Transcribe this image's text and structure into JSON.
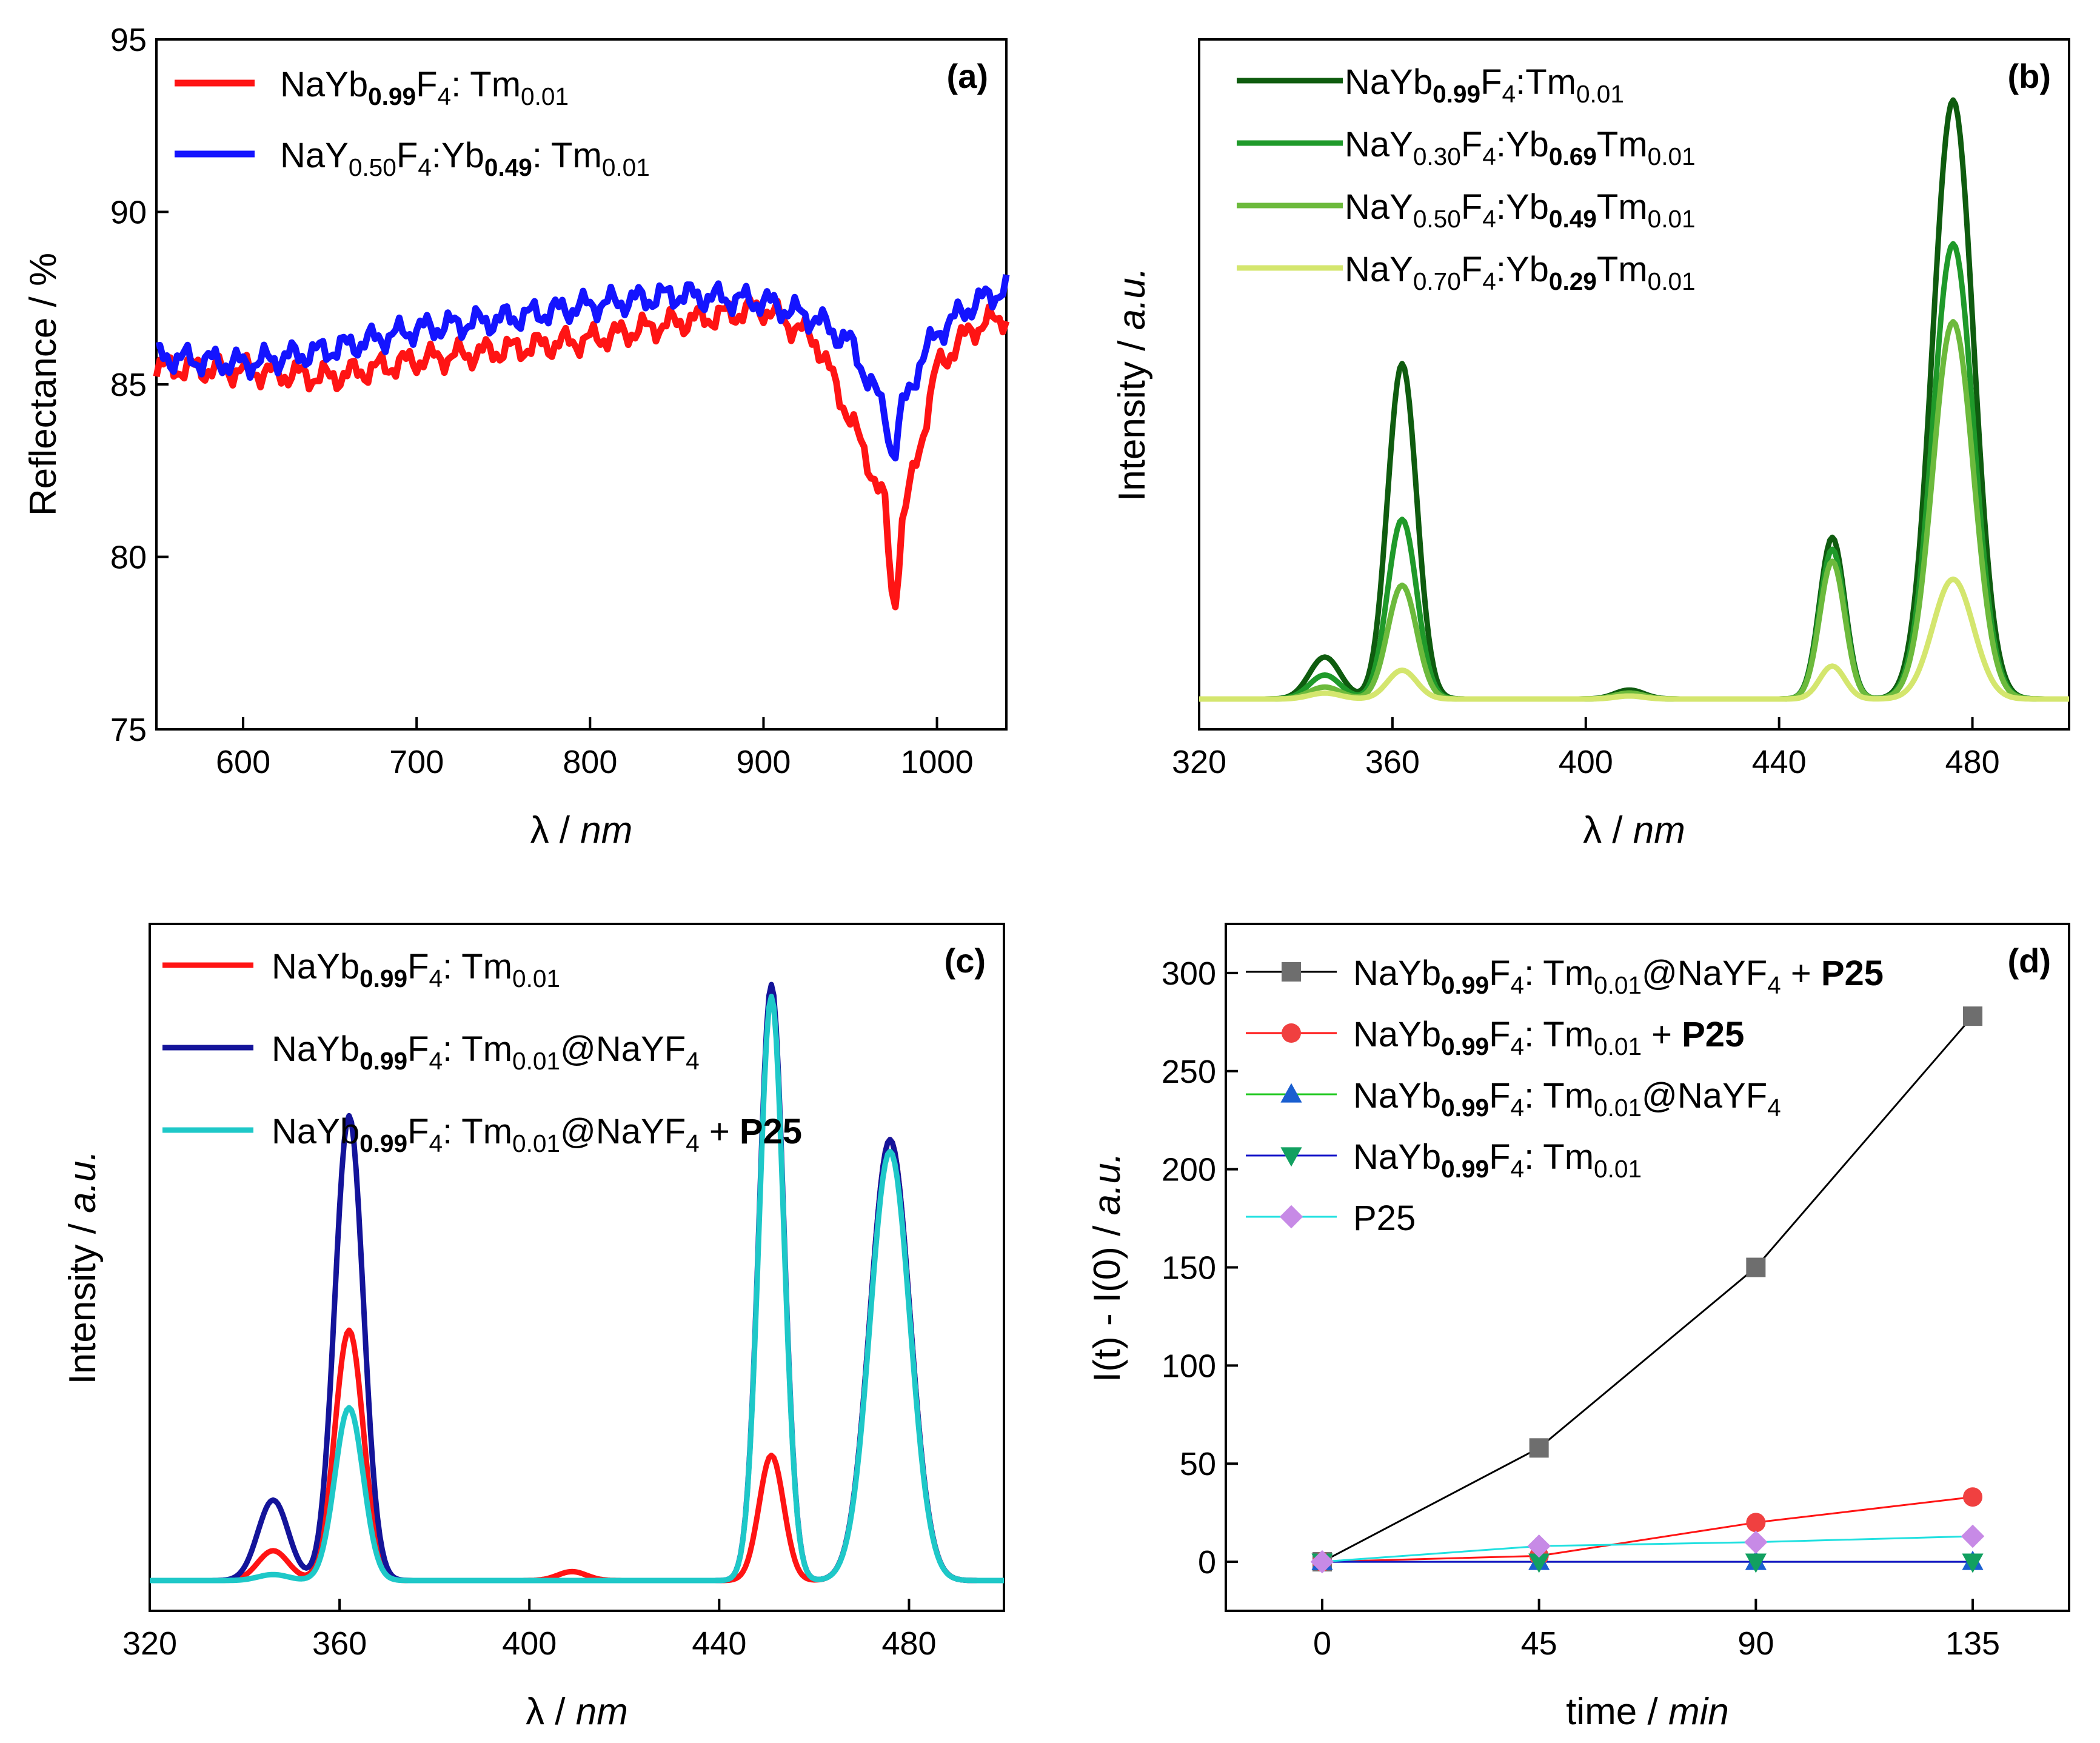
{
  "chart_data": [
    {
      "panel": "(a)",
      "type": "line",
      "xlabel_sym": "λ",
      "xlabel_sep": " / ",
      "xlabel_unit": "nm",
      "ylabel": "Reflectance / %",
      "xlim": [
        550,
        1040
      ],
      "ylim": [
        75,
        95
      ],
      "xticks": [
        600,
        700,
        800,
        900,
        1000
      ],
      "yticks": [
        75,
        80,
        85,
        90,
        95
      ],
      "series": [
        {
          "name": "NaYb0.99F4: Tm0.01",
          "label": [
            [
              "NaYb",
              ""
            ],
            [
              "0.99",
              "subb"
            ],
            [
              "F",
              ""
            ],
            [
              "4",
              "sub"
            ],
            [
              ": Tm",
              ""
            ],
            [
              "0.01",
              "sub"
            ]
          ],
          "color": "#ff1414",
          "width": 11,
          "x": [
            550,
            600,
            650,
            700,
            750,
            800,
            850,
            900,
            930,
            950,
            960,
            970,
            975,
            980,
            990,
            1000,
            1020,
            1040
          ],
          "y": [
            85.5,
            85.4,
            85.2,
            85.7,
            86.0,
            86.3,
            86.8,
            87.2,
            86.3,
            84.0,
            82.8,
            81.5,
            78.3,
            81.0,
            83.2,
            85.5,
            86.6,
            87.0
          ]
        },
        {
          "name": "NaY0.50F4:Yb0.49: Tm0.01",
          "label": [
            [
              "NaY",
              ""
            ],
            [
              "0.50",
              "sub"
            ],
            [
              "F",
              ""
            ],
            [
              "4",
              "sub"
            ],
            [
              ":Yb",
              ""
            ],
            [
              "0.49",
              "subb"
            ],
            [
              ": Tm",
              ""
            ],
            [
              "0.01",
              "sub"
            ]
          ],
          "color": "#1414ff",
          "width": 11,
          "x": [
            550,
            600,
            650,
            700,
            750,
            800,
            850,
            900,
            930,
            950,
            960,
            970,
            975,
            980,
            990,
            1000,
            1020,
            1040
          ],
          "y": [
            85.8,
            85.6,
            86.0,
            86.6,
            86.9,
            87.3,
            87.6,
            87.4,
            86.9,
            86.2,
            85.2,
            84.2,
            82.8,
            84.3,
            85.6,
            86.5,
            87.3,
            87.8
          ]
        }
      ]
    },
    {
      "panel": "(b)",
      "type": "line",
      "xlabel_sym": "λ",
      "xlabel_sep": " / ",
      "xlabel_unit": "nm",
      "ylabel_main": "Intensity / ",
      "ylabel_unit": "a.u.",
      "xlim": [
        320,
        500
      ],
      "ylim": [
        0,
        1.1
      ],
      "xticks": [
        320,
        360,
        400,
        440,
        480
      ],
      "series": [
        {
          "name": "NaYb0.99F4:Tm0.01",
          "label": [
            [
              "NaYb",
              ""
            ],
            [
              "0.99",
              "subb"
            ],
            [
              "F",
              ""
            ],
            [
              "4",
              "sub"
            ],
            [
              ":Tm",
              ""
            ],
            [
              "0.01",
              "sub"
            ]
          ],
          "color": "#0f5c0f",
          "width": 9,
          "peaks": [
            0.07,
            0.56,
            0.015,
            0.27,
            1.0
          ]
        },
        {
          "name": "NaY0.30F4:Yb0.69Tm0.01",
          "label": [
            [
              "NaY",
              ""
            ],
            [
              "0.30",
              "sub"
            ],
            [
              "F",
              ""
            ],
            [
              "4",
              "sub"
            ],
            [
              ":Yb",
              ""
            ],
            [
              "0.69",
              "subb"
            ],
            [
              "Tm",
              ""
            ],
            [
              "0.01",
              "sub"
            ]
          ],
          "color": "#1f9a2a",
          "width": 9,
          "peaks": [
            0.04,
            0.3,
            0.01,
            0.25,
            0.76
          ]
        },
        {
          "name": "NaY0.50F4:Yb0.49Tm0.01",
          "label": [
            [
              "NaY",
              ""
            ],
            [
              "0.50",
              "sub"
            ],
            [
              "F",
              ""
            ],
            [
              "4",
              "sub"
            ],
            [
              ":Yb",
              ""
            ],
            [
              "0.49",
              "subb"
            ],
            [
              "Tm",
              ""
            ],
            [
              "0.01",
              "sub"
            ]
          ],
          "color": "#6cba3c",
          "width": 9,
          "peaks": [
            0.02,
            0.19,
            0.01,
            0.23,
            0.63
          ]
        },
        {
          "name": "NaY0.70F4:Yb0.29Tm0.01",
          "label": [
            [
              "NaY",
              ""
            ],
            [
              "0.70",
              "sub"
            ],
            [
              "F",
              ""
            ],
            [
              "4",
              "sub"
            ],
            [
              ":Yb",
              ""
            ],
            [
              "0.29",
              "subb"
            ],
            [
              "Tm",
              ""
            ],
            [
              "0.01",
              "sub"
            ]
          ],
          "color": "#d4e66e",
          "width": 9,
          "peaks": [
            0.01,
            0.048,
            0.005,
            0.055,
            0.2
          ]
        }
      ]
    },
    {
      "panel": "(c)",
      "type": "line",
      "xlabel_sym": "λ",
      "xlabel_sep": " / ",
      "xlabel_unit": "nm",
      "ylabel_main": "Intensity / ",
      "ylabel_unit": "a.u.",
      "xlim": [
        320,
        500
      ],
      "ylim": [
        0,
        1.1
      ],
      "xticks": [
        320,
        360,
        400,
        440,
        480
      ],
      "series": [
        {
          "name": "NaYb0.99F4: Tm0.01",
          "label": [
            [
              "NaYb",
              ""
            ],
            [
              "0.99",
              "subb"
            ],
            [
              "F",
              ""
            ],
            [
              "4",
              "sub"
            ],
            [
              ": Tm",
              ""
            ],
            [
              "0.01",
              "sub"
            ]
          ],
          "color": "#ff1414",
          "width": 9,
          "peaks": [
            0.05,
            0.42,
            0.015,
            0.21,
            0.74
          ]
        },
        {
          "name": "NaYb0.99F4: Tm0.01@NaYF4",
          "label": [
            [
              "NaYb",
              ""
            ],
            [
              "0.99",
              "subb"
            ],
            [
              "F",
              ""
            ],
            [
              "4",
              "sub"
            ],
            [
              ": Tm",
              ""
            ],
            [
              "0.01",
              "sub"
            ],
            [
              "@NaYF",
              ""
            ],
            [
              "4",
              "sub"
            ]
          ],
          "color": "#14149a",
          "width": 9,
          "peaks": [
            0.135,
            0.78,
            0.0,
            1.0,
            0.74
          ]
        },
        {
          "name": "NaYb0.99F4: Tm0.01@NaYF4 + P25",
          "label": [
            [
              "NaYb",
              ""
            ],
            [
              "0.99",
              "subb"
            ],
            [
              "F",
              ""
            ],
            [
              "4",
              "sub"
            ],
            [
              ": Tm",
              ""
            ],
            [
              "0.01",
              "sub"
            ],
            [
              "@NaYF",
              ""
            ],
            [
              "4",
              "sub"
            ],
            [
              " + ",
              ""
            ],
            [
              "P25",
              "b"
            ]
          ],
          "color": "#1ec8c8",
          "width": 9,
          "peaks": [
            0.01,
            0.29,
            0.0,
            0.98,
            0.72
          ]
        }
      ]
    },
    {
      "panel": "(d)",
      "type": "line",
      "xlabel_main": "time / ",
      "xlabel_unit": "min",
      "ylabel_main": "I(t) - I(0) / ",
      "ylabel_unit": "a.u.",
      "xlim": [
        -20,
        155
      ],
      "ylim": [
        -25,
        325
      ],
      "xticks": [
        0,
        45,
        90,
        135
      ],
      "yticks": [
        0,
        50,
        100,
        150,
        200,
        250,
        300
      ],
      "x": [
        0,
        45,
        90,
        135
      ],
      "series": [
        {
          "name": "NaYb0.99F4: Tm0.01@NaYF4 + P25",
          "label": [
            [
              "NaYb",
              ""
            ],
            [
              "0.99",
              "subb"
            ],
            [
              "F",
              ""
            ],
            [
              "4",
              "sub"
            ],
            [
              ": Tm",
              ""
            ],
            [
              "0.01",
              "sub"
            ],
            [
              "@NaYF",
              ""
            ],
            [
              "4",
              "sub"
            ],
            [
              " + ",
              ""
            ],
            [
              "P25",
              "b"
            ]
          ],
          "line_color": "#000000",
          "marker_color": "#6e6e6e",
          "marker": "square",
          "values": [
            0,
            58,
            150,
            278
          ]
        },
        {
          "name": "NaYb0.99F4: Tm0.01 + P25",
          "label": [
            [
              "NaYb",
              ""
            ],
            [
              "0.99",
              "subb"
            ],
            [
              "F",
              ""
            ],
            [
              "4",
              "sub"
            ],
            [
              ": Tm",
              ""
            ],
            [
              "0.01",
              "sub"
            ],
            [
              " + ",
              ""
            ],
            [
              "P25",
              "b"
            ]
          ],
          "line_color": "#ff1414",
          "marker_color": "#f04040",
          "marker": "circle",
          "values": [
            0,
            3,
            20,
            33
          ]
        },
        {
          "name": "NaYb0.99F4: Tm0.01@NaYF4",
          "label": [
            [
              "NaYb",
              ""
            ],
            [
              "0.99",
              "subb"
            ],
            [
              "F",
              ""
            ],
            [
              "4",
              "sub"
            ],
            [
              ": Tm",
              ""
            ],
            [
              "0.01",
              "sub"
            ],
            [
              "@NaYF",
              ""
            ],
            [
              "4",
              "sub"
            ]
          ],
          "line_color": "#20c820",
          "marker_color": "#1a5fd0",
          "marker": "triangle-up",
          "values": [
            0,
            0,
            0,
            0
          ]
        },
        {
          "name": "NaYb0.99F4: Tm0.01",
          "label": [
            [
              "NaYb",
              ""
            ],
            [
              "0.99",
              "subb"
            ],
            [
              "F",
              ""
            ],
            [
              "4",
              "sub"
            ],
            [
              ": Tm",
              ""
            ],
            [
              "0.01",
              "sub"
            ]
          ],
          "line_color": "#1414c8",
          "marker_color": "#12a060",
          "marker": "triangle-down",
          "values": [
            0,
            0,
            0,
            0
          ]
        },
        {
          "name": "P25",
          "label": [
            [
              "P25",
              ""
            ]
          ],
          "line_color": "#20e0e0",
          "marker_color": "#c78ae6",
          "marker": "diamond",
          "values": [
            0,
            8,
            10,
            13
          ]
        }
      ]
    }
  ]
}
